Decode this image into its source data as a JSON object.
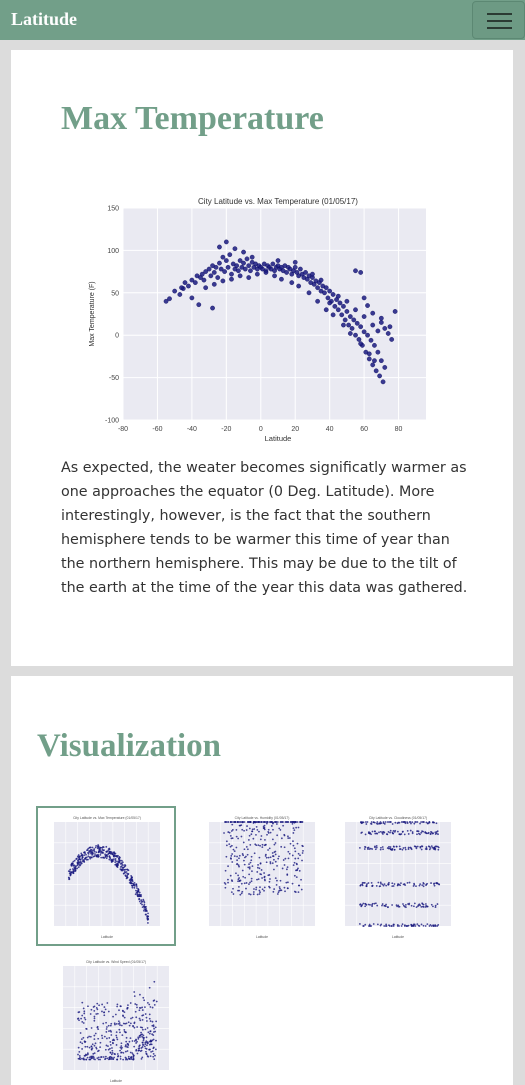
{
  "navbar": {
    "brand": "Latitude",
    "menu_icon": "hamburger-menu-icon",
    "background": "#729f89"
  },
  "section_main": {
    "title": "Max Temperature",
    "paragraph": "As expected, the weater becomes significatly warmer as one approaches the equator (0 Deg. Latitude). More interestingly, however, is the fact that the southern hemisphere tends to be warmer this time of year than the northern hemisphere. This may be due to the tilt of the earth at the time of the year this data was gathered."
  },
  "section_visualization": {
    "title": "Visualization",
    "selected_thumbnail": 0
  },
  "colors": {
    "accent": "#729f89",
    "plot_bg": "#eaeaf2",
    "marker": "#1a1a80"
  },
  "chart_data": [
    {
      "type": "scatter",
      "title": "City Latitude vs. Max Temperature (01/05/17)",
      "xlabel": "Latitude",
      "ylabel": "Max Temperature (F)",
      "xlim": [
        -80,
        100
      ],
      "ylim": [
        -100,
        150
      ],
      "xticks": [
        "-80",
        "-60",
        "-40",
        "-20",
        "0",
        "20",
        "40",
        "60",
        "80",
        "100"
      ],
      "yticks": [
        "150",
        "100",
        "50",
        "0",
        "-50",
        "-100"
      ],
      "grid": true,
      "legend": "none",
      "points": [
        [
          -55,
          40
        ],
        [
          -53,
          43
        ],
        [
          -50,
          52
        ],
        [
          -47,
          48
        ],
        [
          -45,
          55
        ],
        [
          -44,
          62
        ],
        [
          -42,
          58
        ],
        [
          -40,
          65
        ],
        [
          -38,
          62
        ],
        [
          -37,
          70
        ],
        [
          -35,
          68
        ],
        [
          -34,
          72
        ],
        [
          -33,
          65
        ],
        [
          -32,
          75
        ],
        [
          -30,
          78
        ],
        [
          -29,
          70
        ],
        [
          -28,
          82
        ],
        [
          -27,
          74
        ],
        [
          -26,
          80
        ],
        [
          -25,
          68
        ],
        [
          -24,
          85
        ],
        [
          -23,
          78
        ],
        [
          -22,
          92
        ],
        [
          -21,
          75
        ],
        [
          -20,
          88
        ],
        [
          -19,
          80
        ],
        [
          -18,
          95
        ],
        [
          -17,
          72
        ],
        [
          -16,
          84
        ],
        [
          -15,
          78
        ],
        [
          -14,
          82
        ],
        [
          -13,
          76
        ],
        [
          -12,
          88
        ],
        [
          -11,
          80
        ],
        [
          -10,
          85
        ],
        [
          -9,
          78
        ],
        [
          -8,
          90
        ],
        [
          -7,
          82
        ],
        [
          -6,
          76
        ],
        [
          -5,
          86
        ],
        [
          -4,
          80
        ],
        [
          -3,
          84
        ],
        [
          -2,
          78
        ],
        [
          -1,
          82
        ],
        [
          0,
          80
        ],
        [
          1,
          78
        ],
        [
          2,
          84
        ],
        [
          3,
          76
        ],
        [
          4,
          82
        ],
        [
          5,
          80
        ],
        [
          6,
          78
        ],
        [
          7,
          84
        ],
        [
          8,
          76
        ],
        [
          9,
          80
        ],
        [
          10,
          82
        ],
        [
          11,
          78
        ],
        [
          12,
          80
        ],
        [
          13,
          76
        ],
        [
          14,
          82
        ],
        [
          15,
          74
        ],
        [
          16,
          80
        ],
        [
          17,
          78
        ],
        [
          18,
          72
        ],
        [
          19,
          76
        ],
        [
          20,
          80
        ],
        [
          21,
          74
        ],
        [
          22,
          70
        ],
        [
          23,
          78
        ],
        [
          24,
          72
        ],
        [
          25,
          68
        ],
        [
          26,
          74
        ],
        [
          27,
          66
        ],
        [
          28,
          70
        ],
        [
          29,
          62
        ],
        [
          30,
          68
        ],
        [
          31,
          60
        ],
        [
          32,
          64
        ],
        [
          33,
          56
        ],
        [
          34,
          62
        ],
        [
          35,
          52
        ],
        [
          36,
          58
        ],
        [
          37,
          50
        ],
        [
          38,
          56
        ],
        [
          39,
          44
        ],
        [
          40,
          52
        ],
        [
          41,
          40
        ],
        [
          42,
          48
        ],
        [
          43,
          34
        ],
        [
          44,
          42
        ],
        [
          45,
          30
        ],
        [
          46,
          38
        ],
        [
          47,
          24
        ],
        [
          48,
          34
        ],
        [
          49,
          18
        ],
        [
          50,
          28
        ],
        [
          51,
          12
        ],
        [
          52,
          22
        ],
        [
          53,
          8
        ],
        [
          54,
          18
        ],
        [
          55,
          0
        ],
        [
          56,
          14
        ],
        [
          57,
          -5
        ],
        [
          58,
          10
        ],
        [
          59,
          -12
        ],
        [
          60,
          4
        ],
        [
          61,
          -20
        ],
        [
          62,
          0
        ],
        [
          63,
          -28
        ],
        [
          64,
          -6
        ],
        [
          65,
          -35
        ],
        [
          66,
          -12
        ],
        [
          67,
          -42
        ],
        [
          68,
          -20
        ],
        [
          69,
          -48
        ],
        [
          70,
          -30
        ],
        [
          71,
          -55
        ],
        [
          72,
          -38
        ],
        [
          60,
          22
        ],
        [
          62,
          35
        ],
        [
          65,
          12
        ],
        [
          68,
          5
        ],
        [
          70,
          15
        ],
        [
          72,
          8
        ],
        [
          74,
          2
        ],
        [
          76,
          -5
        ],
        [
          55,
          76
        ],
        [
          58,
          74
        ],
        [
          -46,
          56
        ],
        [
          -36,
          36
        ],
        [
          -28,
          32
        ],
        [
          -20,
          110
        ],
        [
          -24,
          104
        ],
        [
          -15,
          102
        ],
        [
          -10,
          98
        ],
        [
          -5,
          92
        ],
        [
          10,
          88
        ],
        [
          20,
          86
        ],
        [
          30,
          72
        ],
        [
          35,
          65
        ],
        [
          40,
          38
        ],
        [
          45,
          46
        ],
        [
          50,
          40
        ],
        [
          55,
          30
        ],
        [
          60,
          44
        ],
        [
          65,
          26
        ],
        [
          70,
          20
        ],
        [
          75,
          10
        ],
        [
          78,
          28
        ],
        [
          66,
          -30
        ],
        [
          63,
          -22
        ],
        [
          58,
          -10
        ],
        [
          52,
          2
        ],
        [
          48,
          12
        ],
        [
          42,
          24
        ],
        [
          38,
          30
        ],
        [
          33,
          40
        ],
        [
          28,
          50
        ],
        [
          22,
          58
        ],
        [
          18,
          62
        ],
        [
          12,
          66
        ],
        [
          8,
          70
        ],
        [
          3,
          74
        ],
        [
          -2,
          72
        ],
        [
          -7,
          68
        ],
        [
          -12,
          70
        ],
        [
          -17,
          66
        ],
        [
          -22,
          64
        ],
        [
          -27,
          60
        ],
        [
          -32,
          56
        ],
        [
          -40,
          44
        ]
      ]
    },
    {
      "type": "scatter",
      "title": "City Latitude vs. Max Temperature (01/05/17)",
      "xlabel": "Latitude",
      "xlim": [
        -80,
        100
      ],
      "ylim": [
        -100,
        150
      ],
      "pattern": "arc"
    },
    {
      "type": "scatter",
      "title": "City Latitude vs. Humidity (01/05/17)",
      "xlabel": "Latitude",
      "xlim": [
        -80,
        100
      ],
      "ylim": [
        0,
        100
      ],
      "pattern": "humidity"
    },
    {
      "type": "scatter",
      "title": "City Latitude vs. Cloudiness (01/05/17)",
      "xlabel": "Latitude",
      "xlim": [
        -80,
        100
      ],
      "ylim": [
        0,
        100
      ],
      "pattern": "cloudiness"
    },
    {
      "type": "scatter",
      "title": "City Latitude vs. Wind Speed (01/05/17)",
      "xlabel": "Latitude",
      "xlim": [
        -80,
        100
      ],
      "ylim": [
        0,
        40
      ],
      "pattern": "wind"
    }
  ]
}
